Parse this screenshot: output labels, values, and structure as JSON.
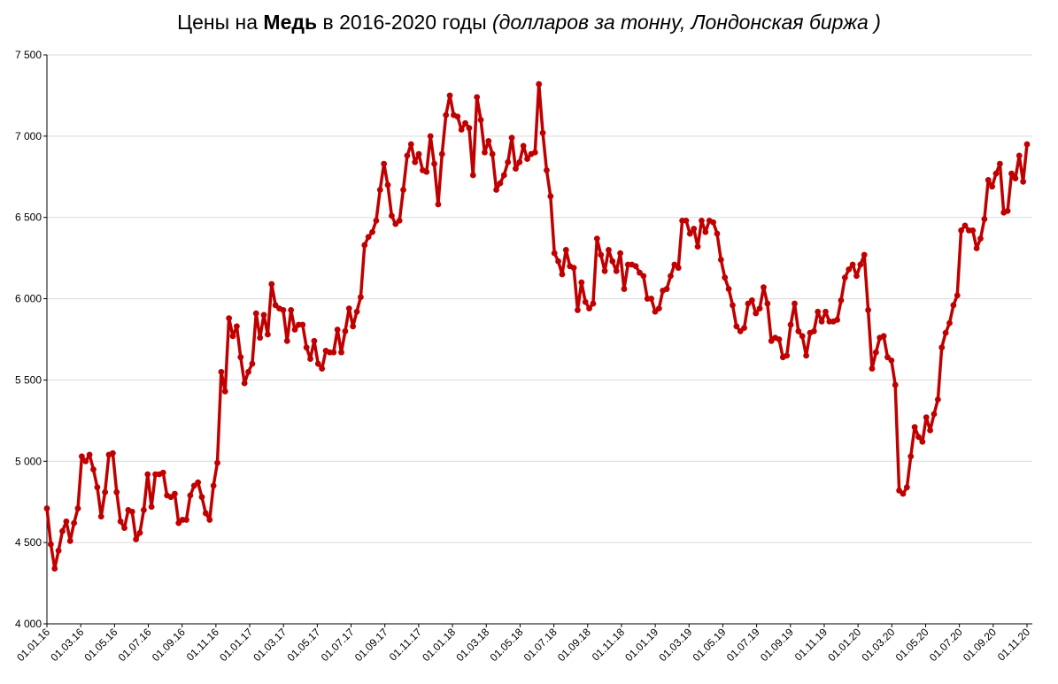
{
  "title": {
    "part1": "Цены на ",
    "bold": "Медь",
    "part2": " в 2016-2020 годы ",
    "italic": "(долларов за тонну, Лондонская биржа )"
  },
  "colors": {
    "line": "#C00000",
    "grid": "#D9D9D9",
    "axis": "#000000"
  },
  "chart_data": {
    "type": "line",
    "title": "Цены на Медь в 2016-2020 годы (долларов за тонну, Лондонская биржа )",
    "xlabel": "",
    "ylabel": "",
    "ylim": [
      4000,
      7500
    ],
    "yticks": [
      4000,
      4500,
      5000,
      5500,
      6000,
      6500,
      7000,
      7500
    ],
    "ytick_labels": [
      "4 000",
      "4 500",
      "5 000",
      "5 500",
      "6 000",
      "6 500",
      "7 000",
      "7 500"
    ],
    "xticks": [
      "01.01.16",
      "01.03.16",
      "01.05.16",
      "01.07.16",
      "01.09.16",
      "01.11.16",
      "01.01.17",
      "01.03.17",
      "01.05.17",
      "01.07.17",
      "01.09.17",
      "01.11.17",
      "01.01.18",
      "01.03.18",
      "01.05.18",
      "01.07.18",
      "01.09.18",
      "01.11.18",
      "01.01.19",
      "01.03.19",
      "01.05.19",
      "01.07.19",
      "01.09.19",
      "01.11.19",
      "01.01.20",
      "01.03.20",
      "01.05.20",
      "01.07.20",
      "01.09.20",
      "01.11.20"
    ],
    "grid": true,
    "legend": "none",
    "series": [
      {
        "frequency": "weekly",
        "values": [
          4710,
          4490,
          4340,
          4450,
          4570,
          4630,
          4510,
          4620,
          4710,
          5030,
          5000,
          5040,
          4950,
          4840,
          4660,
          4810,
          5040,
          5050,
          4810,
          4630,
          4590,
          4700,
          4690,
          4520,
          4560,
          4700,
          4920,
          4720,
          4920,
          4920,
          4930,
          4790,
          4780,
          4800,
          4620,
          4640,
          4640,
          4790,
          4850,
          4870,
          4780,
          4680,
          4640,
          4850,
          4990,
          5550,
          5430,
          5880,
          5770,
          5830,
          5640,
          5480,
          5550,
          5600,
          5910,
          5760,
          5900,
          5780,
          6090,
          5960,
          5940,
          5930,
          5740,
          5930,
          5810,
          5840,
          5840,
          5700,
          5630,
          5740,
          5600,
          5570,
          5680,
          5670,
          5670,
          5810,
          5670,
          5800,
          5940,
          5830,
          5920,
          6010,
          6330,
          6380,
          6410,
          6480,
          6670,
          6830,
          6700,
          6510,
          6460,
          6480,
          6670,
          6880,
          6950,
          6840,
          6890,
          6790,
          6780,
          7000,
          6830,
          6580,
          6890,
          7130,
          7250,
          7130,
          7120,
          7040,
          7080,
          7050,
          6760,
          7240,
          7100,
          6900,
          6970,
          6890,
          6670,
          6710,
          6760,
          6840,
          6990,
          6800,
          6840,
          6940,
          6860,
          6890,
          6900,
          7320,
          7020,
          6790,
          6630,
          6280,
          6230,
          6150,
          6300,
          6200,
          6190,
          5930,
          6100,
          5980,
          5940,
          5970,
          6370,
          6270,
          6170,
          6300,
          6230,
          6170,
          6280,
          6060,
          6210,
          6210,
          6200,
          6160,
          6140,
          6000,
          6000,
          5920,
          5940,
          6050,
          6060,
          6140,
          6210,
          6190,
          6480,
          6480,
          6400,
          6430,
          6320,
          6480,
          6410,
          6480,
          6470,
          6400,
          6240,
          6130,
          6060,
          5960,
          5830,
          5800,
          5820,
          5970,
          5990,
          5910,
          5940,
          6070,
          5970,
          5740,
          5760,
          5750,
          5640,
          5650,
          5840,
          5970,
          5800,
          5770,
          5650,
          5790,
          5800,
          5920,
          5860,
          5920,
          5860,
          5860,
          5870,
          5990,
          6130,
          6180,
          6210,
          6140,
          6210,
          6270,
          5930,
          5570,
          5670,
          5760,
          5770,
          5640,
          5620,
          5470,
          4820,
          4800,
          4840,
          5030,
          5210,
          5150,
          5120,
          5270,
          5190,
          5290,
          5380,
          5700,
          5790,
          5850,
          5960,
          6020,
          6420,
          6450,
          6420,
          6420,
          6310,
          6370,
          6490,
          6730,
          6690,
          6770,
          6830,
          6530,
          6540,
          6770,
          6740,
          6880,
          6720,
          6950
        ]
      }
    ]
  }
}
